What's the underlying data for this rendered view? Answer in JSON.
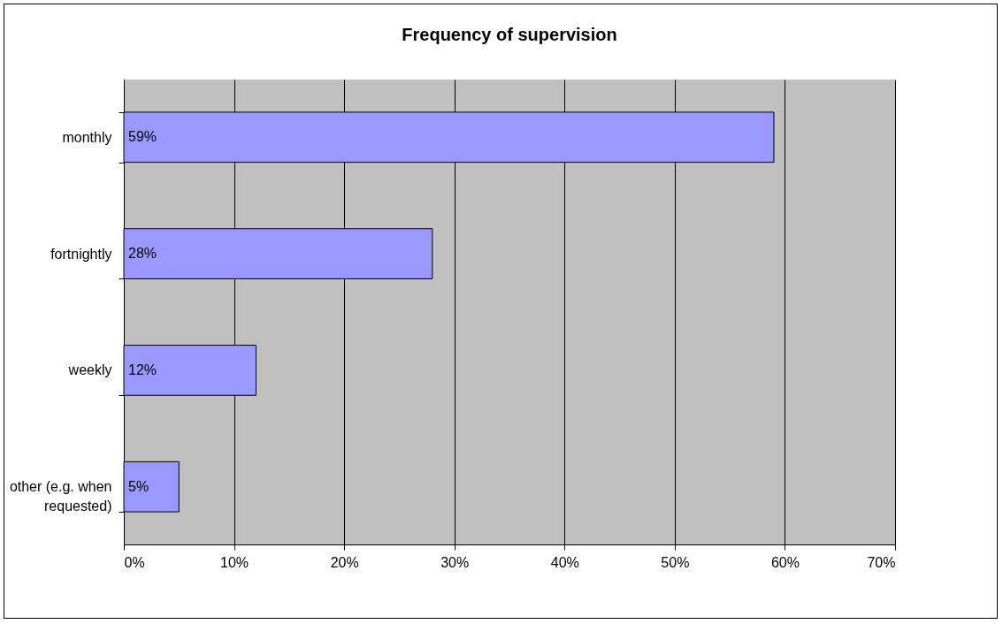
{
  "chart_data": {
    "type": "bar",
    "orientation": "horizontal",
    "title": "Frequency of supervision",
    "categories": [
      "monthly",
      "fortnightly",
      "weekly",
      "other (e.g. when requested)"
    ],
    "values": [
      59,
      28,
      12,
      5
    ],
    "value_labels": [
      "59%",
      "28%",
      "12%",
      "5%"
    ],
    "color": "#9999ff",
    "xlim": [
      0,
      70
    ],
    "xticks": [
      {
        "value": 0,
        "label": "0%"
      },
      {
        "value": 10,
        "label": "10%"
      },
      {
        "value": 20,
        "label": "20%"
      },
      {
        "value": 30,
        "label": "30%"
      },
      {
        "value": 40,
        "label": "40%"
      },
      {
        "value": 50,
        "label": "50%"
      },
      {
        "value": 60,
        "label": "60%"
      },
      {
        "value": 70,
        "label": "70%"
      }
    ],
    "grid": "x"
  }
}
